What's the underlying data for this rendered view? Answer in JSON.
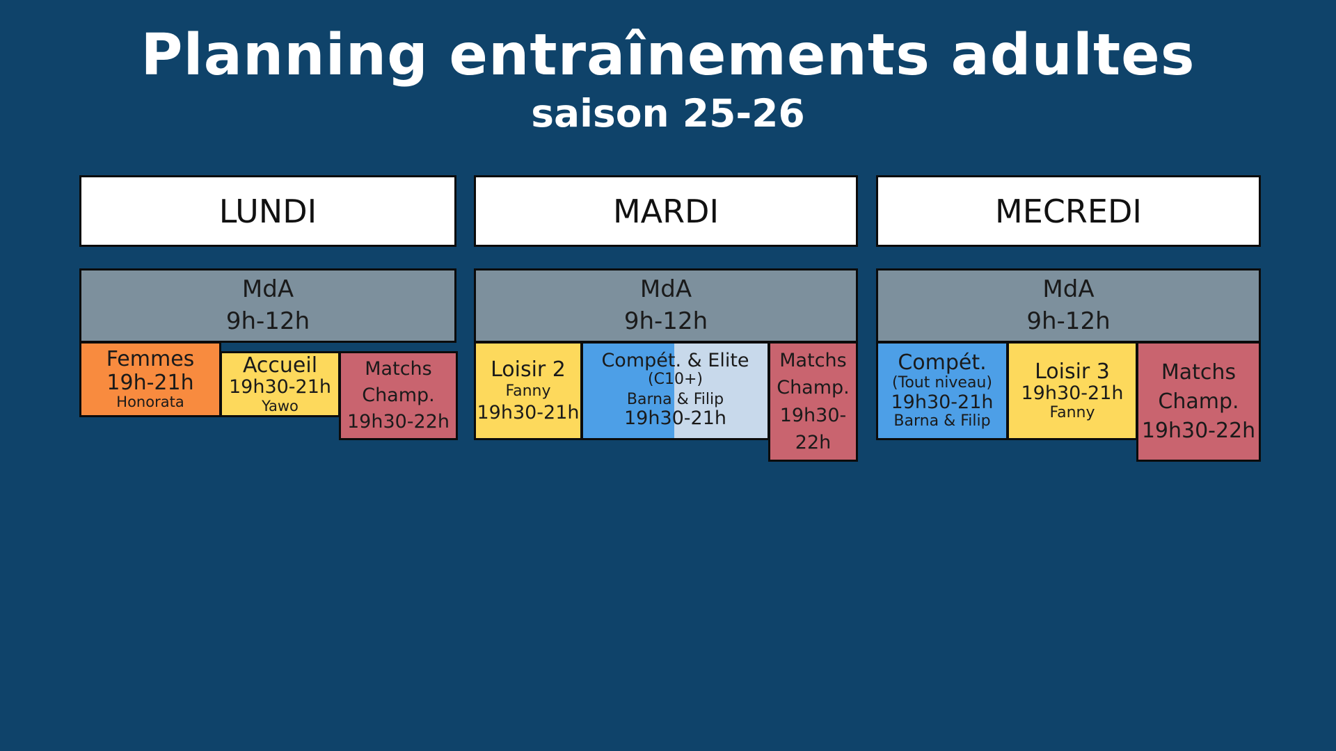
{
  "header": {
    "title": "Planning entraînements adultes",
    "subtitle": "saison 25-26"
  },
  "days": {
    "lundi": {
      "label": "LUNDI",
      "mda": {
        "name": "MdA",
        "time": "9h-12h"
      },
      "sessions": [
        {
          "name": "Femmes",
          "time": "19h-21h",
          "coach": "Honorata",
          "color": "#f88b3f"
        },
        {
          "name": "Accueil",
          "time": "19h30-21h",
          "coach": "Yawo",
          "color": "#fdd95c"
        },
        {
          "name": "Matchs",
          "name2": "Champ.",
          "time": "19h30-22h",
          "color": "#c9646f"
        }
      ]
    },
    "mardi": {
      "label": "MARDI",
      "mda": {
        "name": "MdA",
        "time": "9h-12h"
      },
      "sessions": [
        {
          "name": "Loisir 2",
          "coach": "Fanny",
          "time": "19h30-21h",
          "color": "#fdd95c"
        },
        {
          "name": "Compét. & Elite",
          "level": "(C10+)",
          "coach": "Barna & Filip",
          "time": "19h30-21h",
          "color": "#4d9fe7",
          "color2": "#c8d9eb"
        },
        {
          "name": "Matchs",
          "name2": "Champ.",
          "time": "19h30-",
          "time2": "22h",
          "color": "#c9646f"
        }
      ]
    },
    "mercredi": {
      "label": "MECREDI",
      "mda": {
        "name": "MdA",
        "time": "9h-12h"
      },
      "sessions": [
        {
          "name": "Compét.",
          "level": "(Tout niveau)",
          "time": "19h30-21h",
          "coach": "Barna & Filip",
          "color": "#4d9fe7"
        },
        {
          "name": "Loisir 3",
          "time": "19h30-21h",
          "coach": "Fanny",
          "color": "#fdd95c"
        },
        {
          "name": "Matchs",
          "name2": "Champ.",
          "time": "19h30-22h",
          "color": "#c9646f"
        }
      ]
    }
  }
}
